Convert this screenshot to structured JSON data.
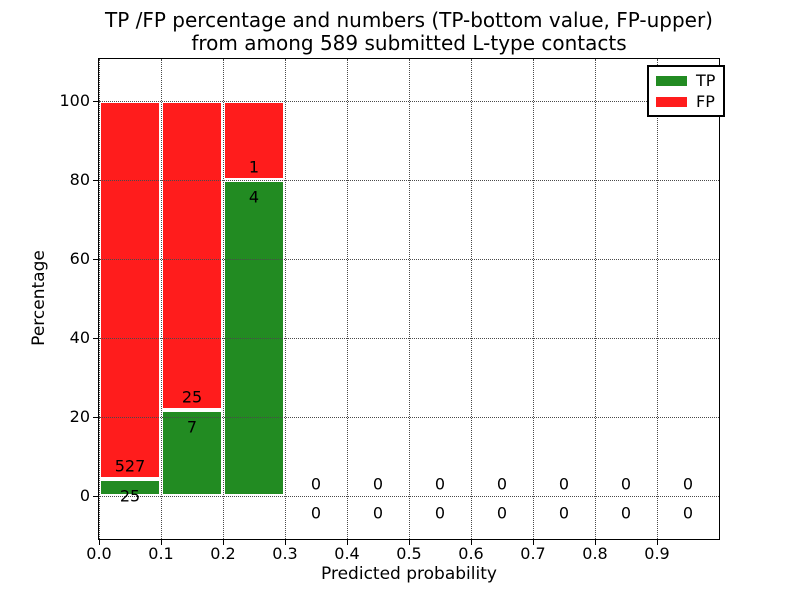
{
  "figure": {
    "title_line1": "TP /FP percentage and numbers (TP-bottom value, FP-upper)",
    "title_line2": "from among 589 submitted L-type contacts"
  },
  "chart_data": {
    "type": "bar",
    "stacked": true,
    "title": "TP /FP percentage and numbers (TP-bottom value, FP-upper)\nfrom among 589 submitted L-type contacts",
    "xlabel": "Predicted probability",
    "ylabel": "Percentage",
    "xlim": [
      0.0,
      1.0
    ],
    "ylim": [
      -10.8,
      110.6
    ],
    "xticks": [
      0.0,
      0.1,
      0.2,
      0.3,
      0.4,
      0.5,
      0.6,
      0.7,
      0.8,
      0.9
    ],
    "xtick_labels": [
      "0.0",
      "0.1",
      "0.2",
      "0.3",
      "0.4",
      "0.5",
      "0.6",
      "0.7",
      "0.8",
      "0.9"
    ],
    "yticks": [
      0,
      20,
      40,
      60,
      80,
      100
    ],
    "ytick_labels": [
      "0",
      "20",
      "40",
      "60",
      "80",
      "100"
    ],
    "grid": "dotted both axes",
    "bar_edge_color": "#ffffff",
    "colors": {
      "tp": "#228b22",
      "fp": "#ff1c1c"
    },
    "legend": {
      "position": "upper right",
      "items": [
        {
          "label": "TP",
          "color": "#228b22"
        },
        {
          "label": "FP",
          "color": "#ff1c1c"
        }
      ]
    },
    "bins": [
      {
        "range": [
          0.0,
          0.1
        ],
        "tp": 25,
        "fp": 527,
        "tp_pct": 4.5
      },
      {
        "range": [
          0.1,
          0.2
        ],
        "tp": 7,
        "fp": 25,
        "tp_pct": 21.9
      },
      {
        "range": [
          0.2,
          0.3
        ],
        "tp": 4,
        "fp": 1,
        "tp_pct": 80.0
      },
      {
        "range": [
          0.3,
          0.4
        ],
        "tp": 0,
        "fp": 0,
        "tp_pct": 0
      },
      {
        "range": [
          0.4,
          0.5
        ],
        "tp": 0,
        "fp": 0,
        "tp_pct": 0
      },
      {
        "range": [
          0.5,
          0.6
        ],
        "tp": 0,
        "fp": 0,
        "tp_pct": 0
      },
      {
        "range": [
          0.6,
          0.7
        ],
        "tp": 0,
        "fp": 0,
        "tp_pct": 0
      },
      {
        "range": [
          0.7,
          0.8
        ],
        "tp": 0,
        "fp": 0,
        "tp_pct": 0
      },
      {
        "range": [
          0.8,
          0.9
        ],
        "tp": 0,
        "fp": 0,
        "tp_pct": 0
      },
      {
        "range": [
          0.9,
          1.0
        ],
        "tp": 0,
        "fp": 0,
        "tp_pct": 0
      }
    ]
  }
}
